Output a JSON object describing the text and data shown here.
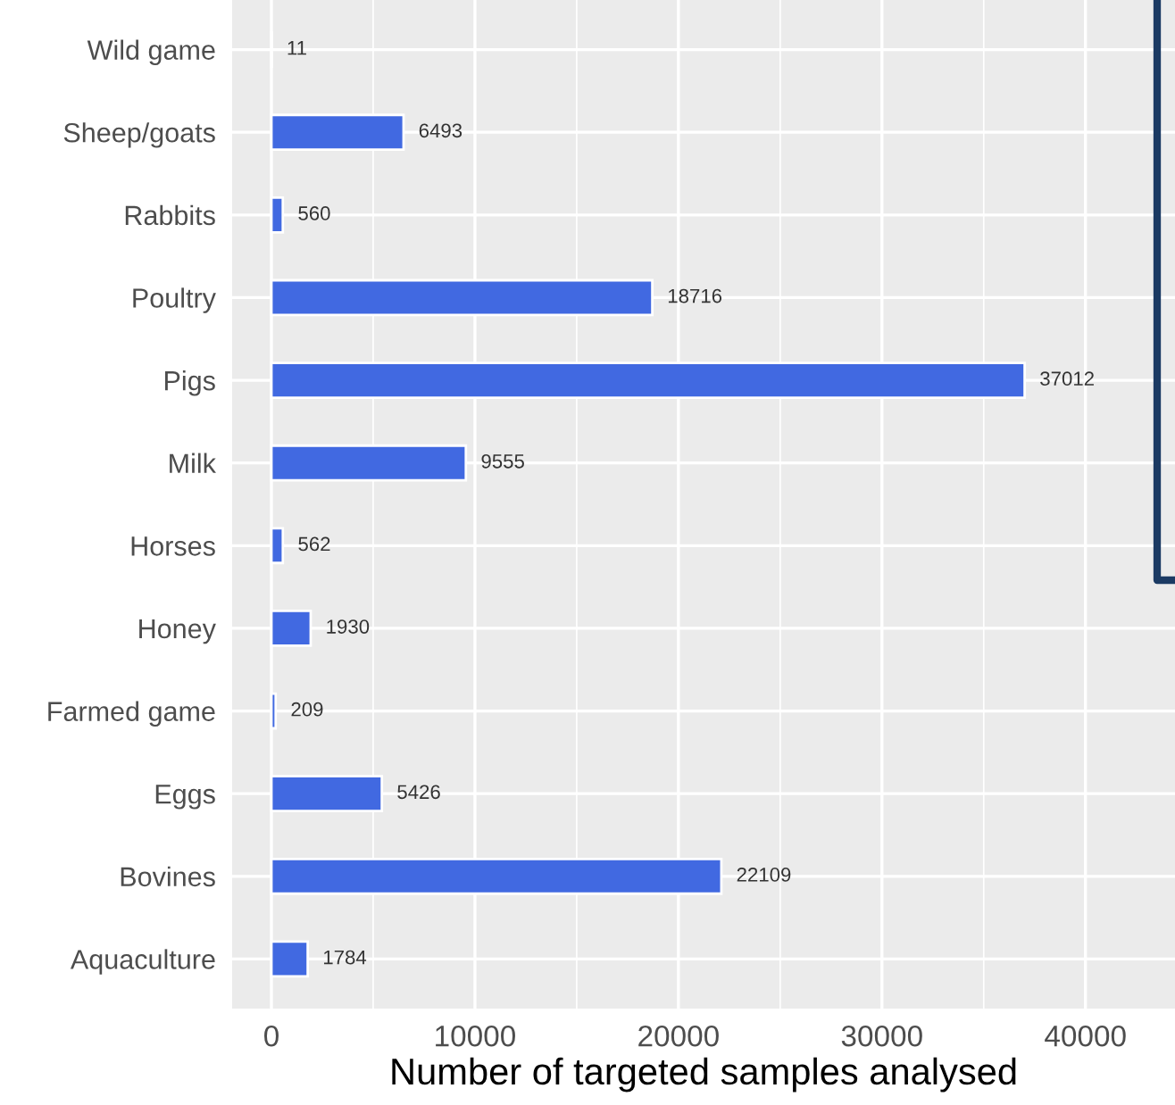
{
  "chart_data": {
    "type": "bar",
    "orientation": "horizontal",
    "xlabel": "Number of targeted samples analysed",
    "categories": [
      "Wild game",
      "Sheep/goats",
      "Rabbits",
      "Poultry",
      "Pigs",
      "Milk",
      "Horses",
      "Honey",
      "Farmed game",
      "Eggs",
      "Bovines",
      "Aquaculture"
    ],
    "values": [
      11,
      6493,
      560,
      18716,
      37012,
      9555,
      562,
      1930,
      209,
      5426,
      22109,
      1784
    ],
    "color": "#4169e1",
    "data_labels": true,
    "xlim": [
      -1930,
      44400
    ],
    "xticks": [
      0,
      10000,
      20000,
      30000,
      40000
    ],
    "grid": true
  }
}
